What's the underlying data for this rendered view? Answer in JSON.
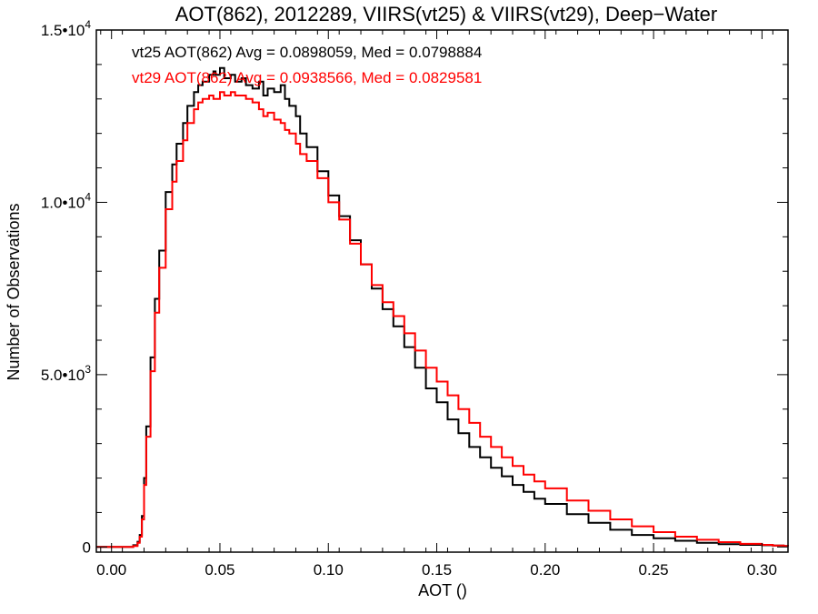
{
  "chart_data": {
    "type": "line",
    "title": "AOT(862), 2012289, VIIRS(vt25) & VIIRS(vt29), Deep−Water",
    "xlabel": "AOT ()",
    "ylabel": "Number of Observations",
    "xlim": [
      -0.007,
      0.312
    ],
    "ylim": [
      -150,
      15000
    ],
    "x_ticks": [
      {
        "value": 0.0,
        "label": "0.00"
      },
      {
        "value": 0.05,
        "label": "0.05"
      },
      {
        "value": 0.1,
        "label": "0.10"
      },
      {
        "value": 0.15,
        "label": "0.15"
      },
      {
        "value": 0.2,
        "label": "0.20"
      },
      {
        "value": 0.25,
        "label": "0.25"
      },
      {
        "value": 0.3,
        "label": "0.30"
      }
    ],
    "y_ticks": [
      {
        "value": 0,
        "mantissa": "0",
        "exponent": ""
      },
      {
        "value": 5000,
        "mantissa": "5.0•10",
        "exponent": "3"
      },
      {
        "value": 10000,
        "mantissa": "1.0•10",
        "exponent": "4"
      },
      {
        "value": 15000,
        "mantissa": "1.5•10",
        "exponent": "4"
      }
    ],
    "grid": false,
    "step": true,
    "series": [
      {
        "name": "vt25",
        "color": "#000000",
        "x": [
          -0.007,
          0.0,
          0.005,
          0.01,
          0.012,
          0.013,
          0.014,
          0.015,
          0.016,
          0.018,
          0.02,
          0.022,
          0.025,
          0.028,
          0.03,
          0.033,
          0.035,
          0.038,
          0.04,
          0.042,
          0.045,
          0.047,
          0.048,
          0.05,
          0.052,
          0.055,
          0.057,
          0.06,
          0.062,
          0.065,
          0.068,
          0.07,
          0.072,
          0.075,
          0.078,
          0.08,
          0.082,
          0.085,
          0.087,
          0.09,
          0.095,
          0.1,
          0.105,
          0.11,
          0.115,
          0.12,
          0.125,
          0.13,
          0.135,
          0.14,
          0.145,
          0.15,
          0.155,
          0.16,
          0.165,
          0.17,
          0.175,
          0.18,
          0.185,
          0.19,
          0.195,
          0.2,
          0.21,
          0.22,
          0.23,
          0.24,
          0.25,
          0.26,
          0.27,
          0.28,
          0.29,
          0.3,
          0.305,
          0.31,
          0.312
        ],
        "y": [
          0,
          0,
          0,
          50,
          150,
          350,
          900,
          2000,
          3500,
          5500,
          7200,
          8600,
          10300,
          11100,
          11700,
          12300,
          12800,
          13200,
          13400,
          13500,
          13700,
          13800,
          13700,
          13900,
          13600,
          13700,
          13500,
          13600,
          13400,
          13300,
          13500,
          13100,
          13300,
          13200,
          13400,
          13000,
          12800,
          12500,
          12000,
          11600,
          10900,
          10200,
          9600,
          8900,
          8200,
          7500,
          6900,
          6400,
          5800,
          5200,
          4600,
          4200,
          3700,
          3300,
          2900,
          2600,
          2300,
          2050,
          1800,
          1600,
          1400,
          1250,
          950,
          700,
          500,
          350,
          250,
          180,
          120,
          80,
          60,
          50,
          40,
          30,
          20
        ]
      },
      {
        "name": "vt29",
        "color": "#ff0000",
        "x": [
          -0.007,
          0.0,
          0.005,
          0.01,
          0.012,
          0.013,
          0.014,
          0.015,
          0.016,
          0.018,
          0.02,
          0.022,
          0.025,
          0.028,
          0.03,
          0.033,
          0.035,
          0.038,
          0.04,
          0.042,
          0.045,
          0.047,
          0.05,
          0.052,
          0.055,
          0.057,
          0.06,
          0.062,
          0.065,
          0.068,
          0.07,
          0.072,
          0.075,
          0.078,
          0.08,
          0.082,
          0.085,
          0.087,
          0.09,
          0.095,
          0.1,
          0.105,
          0.11,
          0.115,
          0.12,
          0.125,
          0.13,
          0.135,
          0.14,
          0.145,
          0.15,
          0.155,
          0.16,
          0.165,
          0.17,
          0.175,
          0.18,
          0.185,
          0.19,
          0.195,
          0.2,
          0.21,
          0.22,
          0.23,
          0.24,
          0.25,
          0.26,
          0.27,
          0.28,
          0.29,
          0.3,
          0.305,
          0.31,
          0.312
        ],
        "y": [
          0,
          0,
          0,
          30,
          120,
          300,
          800,
          1800,
          3200,
          5100,
          6800,
          8100,
          9800,
          10600,
          11200,
          11800,
          12300,
          12700,
          12900,
          13000,
          13100,
          13000,
          13200,
          13100,
          13200,
          13100,
          13100,
          13000,
          12900,
          12700,
          12500,
          12600,
          12400,
          12300,
          12100,
          12000,
          11700,
          11400,
          11200,
          10700,
          10000,
          9500,
          8800,
          8200,
          7600,
          7100,
          6700,
          6200,
          5700,
          5200,
          4800,
          4400,
          4000,
          3600,
          3200,
          2900,
          2600,
          2350,
          2100,
          1900,
          1700,
          1350,
          1050,
          800,
          600,
          430,
          300,
          210,
          140,
          90,
          60,
          40,
          30,
          20
        ]
      }
    ],
    "annotations": [
      {
        "text": "vt25 AOT(862) Avg = 0.0898059, Med = 0.0798884",
        "color": "#000000"
      },
      {
        "text": "vt29 AOT(862) Avg = 0.0938566, Med = 0.0829581",
        "color": "#ff0000"
      }
    ]
  }
}
